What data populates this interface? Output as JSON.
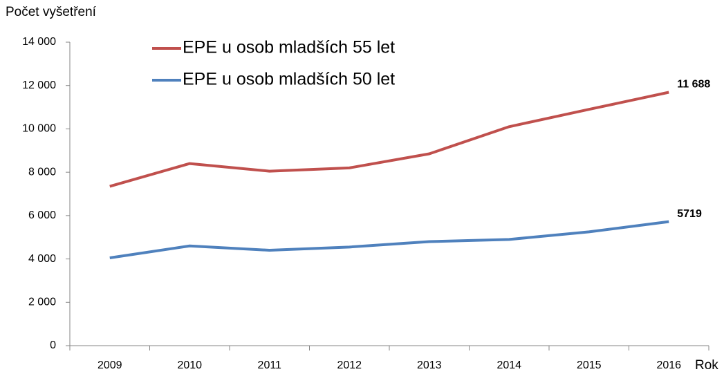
{
  "chart_data": {
    "type": "line",
    "y_label": "Počet vyšetření",
    "x_label": "Rok",
    "categories": [
      "2009",
      "2010",
      "2011",
      "2012",
      "2013",
      "2014",
      "2015",
      "2016"
    ],
    "series": [
      {
        "name": "EPE u osob mladších 55 let",
        "color": "#c0504d",
        "values": [
          7350,
          8400,
          8050,
          8200,
          8850,
          10100,
          10900,
          11688
        ],
        "value_labels": [
          null,
          null,
          null,
          null,
          null,
          null,
          null,
          "11 688"
        ]
      },
      {
        "name": "EPE u osob mladších 50 let",
        "color": "#4f81bd",
        "values": [
          4050,
          4600,
          4400,
          4550,
          4800,
          4900,
          5250,
          5719
        ],
        "value_labels": [
          null,
          null,
          null,
          null,
          null,
          null,
          null,
          "5719"
        ]
      }
    ],
    "ylim": [
      0,
      14000
    ],
    "yticks": [
      0,
      {
        "value": 2000,
        "label": "2 000"
      },
      {
        "value": 4000,
        "label": "4 000"
      },
      {
        "value": 6000,
        "label": "6 000"
      },
      {
        "value": 8000,
        "label": "8 000"
      },
      {
        "value": 10000,
        "label": "10 000"
      },
      {
        "value": 12000,
        "label": "12 000"
      },
      {
        "value": 14000,
        "label": "14 000"
      }
    ],
    "grid": false,
    "legend": "top"
  }
}
